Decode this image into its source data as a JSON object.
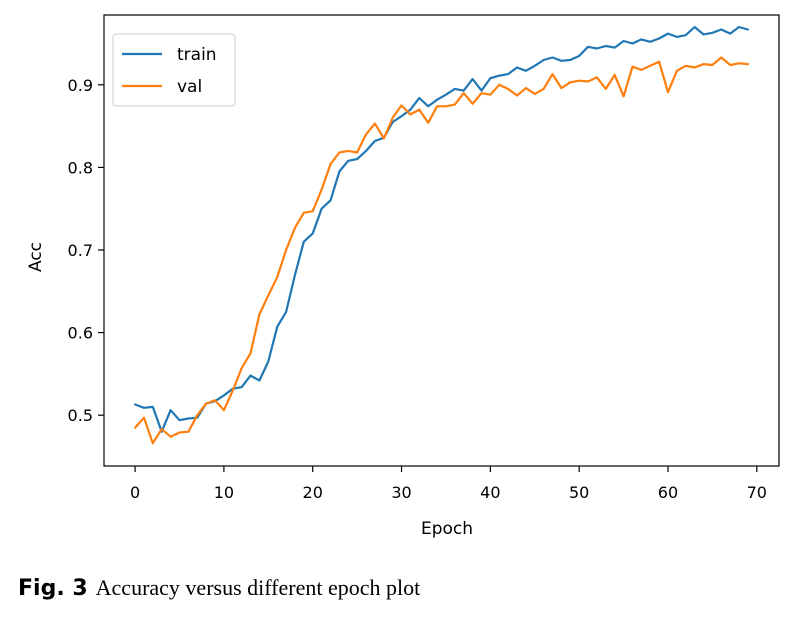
{
  "chart_data": {
    "type": "line",
    "xlabel": "Epoch",
    "ylabel": "Acc",
    "xlim": [
      -3.5,
      72.5
    ],
    "ylim": [
      0.4385,
      0.9845
    ],
    "xticks": [
      0,
      10,
      20,
      30,
      40,
      50,
      60,
      70
    ],
    "yticks": [
      0.5,
      0.6,
      0.7,
      0.8,
      0.9
    ],
    "ytick_labels": [
      "0.5",
      "0.6",
      "0.7",
      "0.8",
      "0.9"
    ],
    "grid": false,
    "legend_position": "top-left",
    "x": [
      0,
      1,
      2,
      3,
      4,
      5,
      6,
      7,
      8,
      9,
      10,
      11,
      12,
      13,
      14,
      15,
      16,
      17,
      18,
      19,
      20,
      21,
      22,
      23,
      24,
      25,
      26,
      27,
      28,
      29,
      30,
      31,
      32,
      33,
      34,
      35,
      36,
      37,
      38,
      39,
      40,
      41,
      42,
      43,
      44,
      45,
      46,
      47,
      48,
      49,
      50,
      51,
      52,
      53,
      54,
      55,
      56,
      57,
      58,
      59,
      60,
      61,
      62,
      63,
      64,
      65,
      66,
      67,
      68,
      69
    ],
    "series": [
      {
        "name": "train",
        "color": "#1f77b4",
        "values": [
          0.513,
          0.509,
          0.51,
          0.48,
          0.506,
          0.494,
          0.496,
          0.497,
          0.514,
          0.517,
          0.524,
          0.532,
          0.534,
          0.548,
          0.542,
          0.565,
          0.607,
          0.625,
          0.67,
          0.71,
          0.72,
          0.75,
          0.76,
          0.795,
          0.808,
          0.81,
          0.82,
          0.832,
          0.836,
          0.855,
          0.862,
          0.87,
          0.884,
          0.874,
          0.882,
          0.888,
          0.895,
          0.893,
          0.907,
          0.893,
          0.908,
          0.911,
          0.913,
          0.921,
          0.917,
          0.923,
          0.93,
          0.933,
          0.929,
          0.93,
          0.935,
          0.946,
          0.944,
          0.947,
          0.945,
          0.953,
          0.95,
          0.955,
          0.952,
          0.956,
          0.962,
          0.958,
          0.96,
          0.97,
          0.961,
          0.963,
          0.967,
          0.962,
          0.97,
          0.967
        ]
      },
      {
        "name": "val",
        "color": "#ff7f0e",
        "values": [
          0.485,
          0.497,
          0.466,
          0.483,
          0.474,
          0.479,
          0.48,
          0.5,
          0.514,
          0.518,
          0.506,
          0.53,
          0.557,
          0.575,
          0.622,
          0.645,
          0.667,
          0.7,
          0.727,
          0.745,
          0.747,
          0.773,
          0.804,
          0.818,
          0.82,
          0.818,
          0.84,
          0.853,
          0.835,
          0.86,
          0.875,
          0.864,
          0.87,
          0.854,
          0.874,
          0.874,
          0.876,
          0.89,
          0.877,
          0.89,
          0.888,
          0.9,
          0.895,
          0.887,
          0.896,
          0.889,
          0.895,
          0.913,
          0.896,
          0.903,
          0.905,
          0.904,
          0.909,
          0.895,
          0.912,
          0.886,
          0.922,
          0.918,
          0.923,
          0.928,
          0.891,
          0.917,
          0.923,
          0.921,
          0.925,
          0.924,
          0.933,
          0.924,
          0.926,
          0.925
        ]
      }
    ]
  },
  "caption": {
    "label": "Fig. 3",
    "text": "Accuracy versus different epoch plot"
  }
}
